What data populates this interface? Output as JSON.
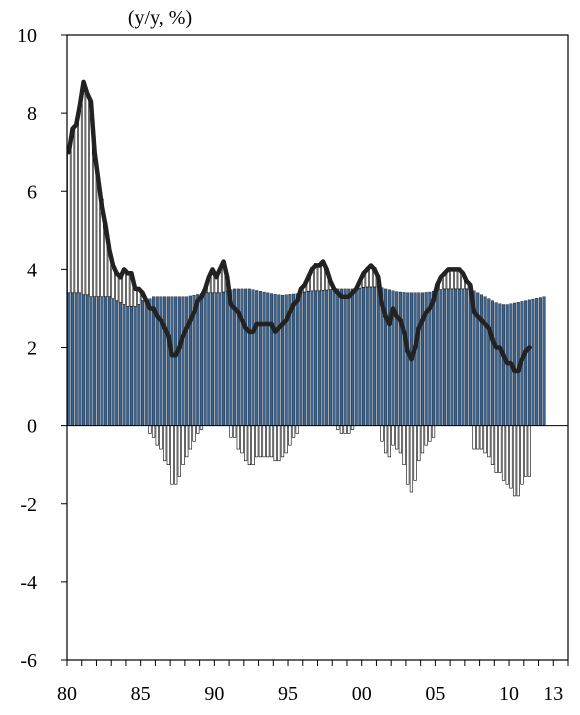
{
  "chart_data": {
    "type": "bar",
    "title": "",
    "unit_label": "(y/y, %)",
    "xlabel": "",
    "ylabel": "",
    "ylim": [
      -6,
      10
    ],
    "xlim": [
      1980.0,
      2014.0
    ],
    "y_ticks": [
      10,
      8,
      6,
      4,
      2,
      0,
      -2,
      -4,
      -6
    ],
    "x_tick_labels": [
      {
        "label": "80",
        "year": 1980.0
      },
      {
        "label": "85",
        "year": 1985.0
      },
      {
        "label": "90",
        "year": 1990.0
      },
      {
        "label": "95",
        "year": 1995.0
      },
      {
        "label": "00",
        "year": 2000.0
      },
      {
        "label": "05",
        "year": 2005.0
      },
      {
        "label": "10",
        "year": 2010.0
      },
      {
        "label": "13",
        "year": 2013.0
      }
    ],
    "grid": false,
    "legend": "none",
    "colors": {
      "potential_bars": "#3a6593",
      "gap_bars": "#ffffff",
      "bar_outline": "#000000",
      "actual_line": "#222222"
    },
    "bar_start": 1980.0,
    "bar_step": 0.25,
    "series": [
      {
        "kind": "bar",
        "values": [
          3.4,
          3.4,
          3.4,
          3.4,
          3.35,
          3.35,
          3.3,
          3.3,
          3.3,
          3.3,
          3.3,
          3.3,
          3.25,
          3.2,
          3.15,
          3.1,
          3.05,
          3.05,
          3.05,
          3.1,
          3.2,
          3.25,
          3.25,
          3.3,
          3.3,
          3.3,
          3.3,
          3.3,
          3.3,
          3.3,
          3.3,
          3.3,
          3.3,
          3.32,
          3.34,
          3.36,
          3.38,
          3.4,
          3.4,
          3.4,
          3.4,
          3.4,
          3.42,
          3.45,
          3.48,
          3.5,
          3.5,
          3.5,
          3.5,
          3.5,
          3.48,
          3.46,
          3.44,
          3.42,
          3.4,
          3.38,
          3.36,
          3.35,
          3.34,
          3.35,
          3.36,
          3.37,
          3.38,
          3.4,
          3.42,
          3.44,
          3.45,
          3.45,
          3.45,
          3.46,
          3.47,
          3.48,
          3.49,
          3.5,
          3.5,
          3.5,
          3.5,
          3.5,
          3.5,
          3.52,
          3.54,
          3.55,
          3.55,
          3.55,
          3.55,
          3.53,
          3.5,
          3.48,
          3.45,
          3.43,
          3.42,
          3.41,
          3.4,
          3.4,
          3.4,
          3.4,
          3.4,
          3.41,
          3.42,
          3.44,
          3.46,
          3.48,
          3.5,
          3.5,
          3.5,
          3.5,
          3.5,
          3.5,
          3.5,
          3.48,
          3.45,
          3.4,
          3.35,
          3.3,
          3.25,
          3.2,
          3.15,
          3.12,
          3.1,
          3.1,
          3.12,
          3.14,
          3.16,
          3.18,
          3.2,
          3.22,
          3.24,
          3.26,
          3.28,
          3.3
        ]
      },
      {
        "kind": "bar",
        "values": [
          3.6,
          4.2,
          4.3,
          4.8,
          5.4,
          5.1,
          5.0,
          3.7,
          3.0,
          2.5,
          1.9,
          1.3,
          0.9,
          0.7,
          0.6,
          0.9,
          0.8,
          0.8,
          0.5,
          0.4,
          0.2,
          0.0,
          -0.2,
          -0.3,
          -0.5,
          -0.6,
          -0.9,
          -1.0,
          -1.5,
          -1.5,
          -1.3,
          -1.0,
          -0.8,
          -0.6,
          -0.4,
          -0.2,
          -0.1,
          0.1,
          0.4,
          0.5,
          0.5,
          0.6,
          0.7,
          0.3,
          -0.3,
          -0.3,
          -0.6,
          -0.7,
          -0.9,
          -1.0,
          -1.0,
          -0.8,
          -0.8,
          -0.8,
          -0.8,
          -0.8,
          -0.9,
          -0.9,
          -0.8,
          -0.7,
          -0.5,
          -0.3,
          -0.2,
          0.1,
          0.2,
          0.4,
          0.6,
          0.7,
          0.7,
          0.7,
          0.5,
          0.2,
          0.0,
          -0.1,
          -0.2,
          -0.2,
          -0.2,
          -0.1,
          0.0,
          0.2,
          0.4,
          0.5,
          0.5,
          0.5,
          0.3,
          -0.4,
          -0.7,
          -0.8,
          -0.5,
          -0.6,
          -0.7,
          -1.0,
          -1.5,
          -1.7,
          -1.4,
          -0.9,
          -0.7,
          -0.5,
          -0.4,
          -0.3,
          0.1,
          0.3,
          0.4,
          0.5,
          0.5,
          0.5,
          0.5,
          0.4,
          0.2,
          0.1,
          -0.6,
          -0.6,
          -0.6,
          -0.7,
          -0.8,
          -1.0,
          -1.2,
          -1.2,
          -1.4,
          -1.5,
          -1.6,
          -1.8,
          -1.8,
          -1.5,
          -1.3,
          -1.3
        ]
      },
      {
        "kind": "line",
        "values": [
          7.0,
          7.6,
          7.7,
          8.2,
          8.8,
          8.5,
          8.3,
          7.0,
          6.3,
          5.6,
          5.1,
          4.5,
          4.1,
          3.9,
          3.8,
          4.0,
          3.9,
          3.9,
          3.5,
          3.5,
          3.4,
          3.2,
          3.0,
          3.0,
          2.8,
          2.7,
          2.5,
          2.3,
          1.8,
          1.8,
          2.0,
          2.3,
          2.5,
          2.7,
          2.9,
          3.2,
          3.3,
          3.5,
          3.8,
          4.0,
          3.8,
          4.0,
          4.2,
          3.8,
          3.1,
          3.0,
          2.9,
          2.7,
          2.5,
          2.4,
          2.4,
          2.6,
          2.6,
          2.6,
          2.6,
          2.6,
          2.4,
          2.5,
          2.6,
          2.7,
          2.9,
          3.1,
          3.2,
          3.5,
          3.6,
          3.8,
          4.0,
          4.1,
          4.1,
          4.2,
          4.0,
          3.7,
          3.5,
          3.4,
          3.3,
          3.3,
          3.3,
          3.4,
          3.5,
          3.7,
          3.9,
          4.0,
          4.1,
          4.0,
          3.8,
          3.1,
          2.8,
          2.6,
          3.0,
          2.8,
          2.7,
          2.4,
          1.9,
          1.7,
          2.0,
          2.5,
          2.7,
          2.9,
          3.0,
          3.2,
          3.6,
          3.8,
          3.9,
          4.0,
          4.0,
          4.0,
          4.0,
          3.9,
          3.7,
          3.6,
          2.9,
          2.8,
          2.7,
          2.6,
          2.5,
          2.2,
          2.0,
          2.0,
          1.8,
          1.6,
          1.6,
          1.4,
          1.4,
          1.7,
          1.9,
          2.0
        ]
      }
    ]
  }
}
